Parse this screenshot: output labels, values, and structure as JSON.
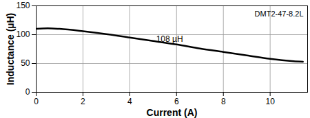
{
  "chart_data": {
    "type": "line",
    "title": "DMT2-47-8.2L",
    "x_label": "Current (A)",
    "y_label": "Inductance (µH)",
    "x": [
      0,
      0.5,
      1,
      2,
      3,
      4,
      5,
      6,
      7,
      8,
      9,
      10,
      11,
      11.4
    ],
    "values": [
      110,
      111,
      110,
      106,
      101,
      95,
      89,
      83,
      76,
      70,
      64,
      58,
      54,
      53
    ],
    "color": "#000000",
    "xlim": [
      0,
      11.6
    ],
    "ylim": [
      0,
      150
    ],
    "xticks": [
      0,
      2,
      4,
      6,
      8,
      10
    ],
    "yticks": [
      0,
      50,
      100,
      150
    ],
    "grid": true,
    "annotations": [
      {
        "text": "108 µH",
        "x": 5.7,
        "y": 92
      }
    ]
  }
}
